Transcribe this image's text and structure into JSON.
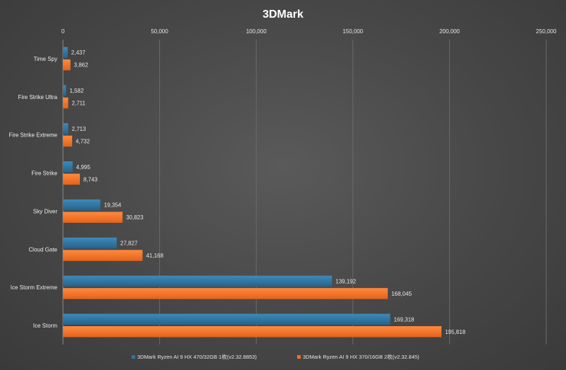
{
  "colors": {
    "series1": "#2e74a3",
    "series1_light": "#3f8ab8",
    "series2": "#f07124",
    "series2_light": "#ff8a3d",
    "background": "#4a4a4a",
    "text": "#e6e6e6"
  },
  "chart_data": {
    "type": "bar",
    "orientation": "horizontal",
    "title": "3DMark",
    "xlabel": "",
    "ylabel": "",
    "xlim": [
      0,
      250000
    ],
    "xticks": [
      0,
      50000,
      100000,
      150000,
      200000,
      250000
    ],
    "xtick_labels": [
      "0",
      "50,000",
      "100,000",
      "150,000",
      "200,000",
      "250,000"
    ],
    "x_axis_position": "top",
    "grid": true,
    "legend_position": "bottom",
    "categories": [
      "Time Spy",
      "Fire Strike Ultra",
      "Fire Strike Extreme",
      "Fire Strike",
      "Sky Diver",
      "Cloud Gate",
      "Ice Storm Extreme",
      "Ice Storm"
    ],
    "series": [
      {
        "name": "3DMark Ryzen AI 9 HX 470/32GB 1枚(v2.32.8853)",
        "values": [
          2437,
          1582,
          2713,
          4995,
          19354,
          27827,
          139192,
          169318
        ],
        "labels": [
          "2,437",
          "1,582",
          "2,713",
          "4,995",
          "19,354",
          "27,827",
          "139,192",
          "169,318"
        ]
      },
      {
        "name": "3DMark Ryzen AI 9 HX 370/16GB 2枚(v2.32.845)",
        "values": [
          3862,
          2711,
          4732,
          8743,
          30823,
          41168,
          168045,
          195818
        ],
        "labels": [
          "3,862",
          "2,711",
          "4,732",
          "8,743",
          "30,823",
          "41,168",
          "168,045",
          "195,818"
        ]
      }
    ]
  }
}
